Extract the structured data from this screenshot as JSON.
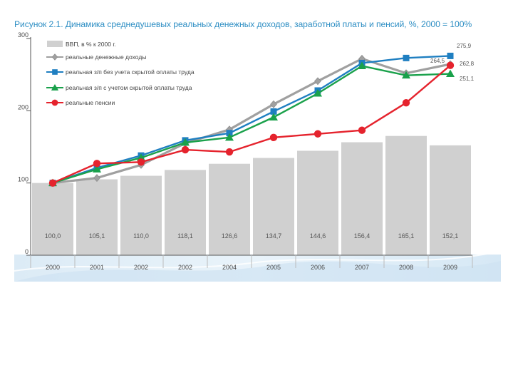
{
  "title": "Рисунок 2.1. Динамика среднедушевых реальных денежных доходов, заработной платы и пенсий, %, 2000 = 100%",
  "chart_data": {
    "type": "bar+line",
    "title": "Рисунок 2.1. Динамика среднедушевых реальных денежных доходов, заработной платы и пенсий, %, 2000 = 100%",
    "xlabel": "",
    "ylabel": "",
    "ylim": [
      0,
      300
    ],
    "yticks": [
      "0",
      "100",
      "200",
      "300"
    ],
    "categories": [
      "2000",
      "2001",
      "2002",
      "2002",
      "2004",
      "2005",
      "2006",
      "2007",
      "2008",
      "2009"
    ],
    "bars": {
      "name": "ВВП, в % к 2000 г.",
      "color": "#d0d0d0",
      "values": [
        100.0,
        105.1,
        110.0,
        118.1,
        126.6,
        134.7,
        144.6,
        156.4,
        165.1,
        152.1
      ],
      "labels": [
        "100,0",
        "105,1",
        "110,0",
        "118,1",
        "126,6",
        "134,7",
        "144,6",
        "156,4",
        "165,1",
        "152,1"
      ]
    },
    "series": [
      {
        "name": "реальные денежные доходы",
        "color": "#a0a0a0",
        "marker": "diamond",
        "values": [
          100,
          107,
          125,
          155,
          174,
          209,
          241,
          272,
          252,
          264.5
        ],
        "end_label": "264,5"
      },
      {
        "name": "реальная з/п без учета скрытой оплаты труда",
        "color": "#1f7fc1",
        "marker": "square",
        "values": [
          100,
          121,
          138,
          159,
          169,
          199,
          228,
          266,
          273,
          275.9
        ],
        "end_label": "275,9"
      },
      {
        "name": "реальная з/п с учетом скрытой оплаты труда",
        "color": "#1aa14b",
        "marker": "triangle",
        "values": [
          100,
          119,
          135,
          156,
          163,
          191,
          224,
          262,
          249,
          251.1
        ],
        "end_label": "251,1"
      },
      {
        "name": "реальные пенсии",
        "color": "#e5232d",
        "marker": "circle",
        "values": [
          100,
          127,
          129,
          146,
          143,
          163,
          168,
          173,
          211,
          262.8
        ],
        "end_label": "262,8"
      }
    ],
    "legend_position": "top-left",
    "grid": false
  }
}
